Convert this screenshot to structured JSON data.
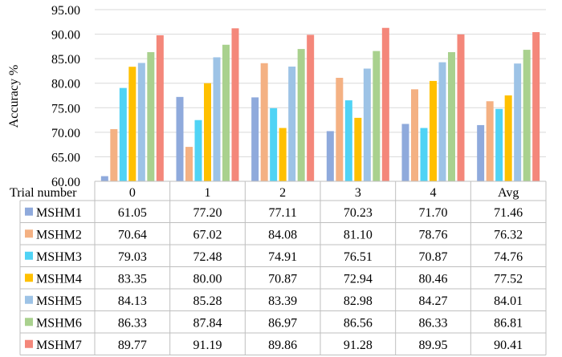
{
  "chart_data": {
    "type": "bar",
    "title": "",
    "xlabel": "Trial number",
    "ylabel": "Accuracy %",
    "ylim": [
      60,
      95
    ],
    "yticks": [
      "60.00",
      "65.00",
      "70.00",
      "75.00",
      "80.00",
      "85.00",
      "90.00",
      "95.00"
    ],
    "grid": true,
    "legend": "table-rows",
    "categories": [
      "0",
      "1",
      "2",
      "3",
      "4",
      "Avg"
    ],
    "series": [
      {
        "name": "MSHM1",
        "color": "#8FAADC",
        "values": [
          61.05,
          77.2,
          77.11,
          70.23,
          71.7,
          71.46
        ],
        "labels": [
          "61.05",
          "77.20",
          "77.11",
          "70.23",
          "71.70",
          "71.46"
        ]
      },
      {
        "name": "MSHM2",
        "color": "#F4B183",
        "values": [
          70.64,
          67.02,
          84.08,
          81.1,
          78.76,
          76.32
        ],
        "labels": [
          "70.64",
          "67.02",
          "84.08",
          "81.10",
          "78.76",
          "76.32"
        ]
      },
      {
        "name": "MSHM3",
        "color": "#4FD3F5",
        "values": [
          79.03,
          72.48,
          74.91,
          76.51,
          70.87,
          74.76
        ],
        "labels": [
          "79.03",
          "72.48",
          "74.91",
          "76.51",
          "70.87",
          "74.76"
        ]
      },
      {
        "name": "MSHM4",
        "color": "#FFC000",
        "values": [
          83.35,
          80.0,
          70.87,
          72.94,
          80.46,
          77.52
        ],
        "labels": [
          "83.35",
          "80.00",
          "70.87",
          "72.94",
          "80.46",
          "77.52"
        ]
      },
      {
        "name": "MSHM5",
        "color": "#9DC3E6",
        "values": [
          84.13,
          85.28,
          83.39,
          82.98,
          84.27,
          84.01
        ],
        "labels": [
          "84.13",
          "85.28",
          "83.39",
          "82.98",
          "84.27",
          "84.01"
        ]
      },
      {
        "name": "MSHM6",
        "color": "#A9D18E",
        "values": [
          86.33,
          87.84,
          86.97,
          86.56,
          86.33,
          86.81
        ],
        "labels": [
          "86.33",
          "87.84",
          "86.97",
          "86.56",
          "86.33",
          "86.81"
        ]
      },
      {
        "name": "MSHM7",
        "color": "#F4877A",
        "values": [
          89.77,
          91.19,
          89.86,
          91.28,
          89.95,
          90.41
        ],
        "labels": [
          "89.77",
          "91.19",
          "89.86",
          "91.28",
          "89.95",
          "90.41"
        ]
      }
    ]
  }
}
